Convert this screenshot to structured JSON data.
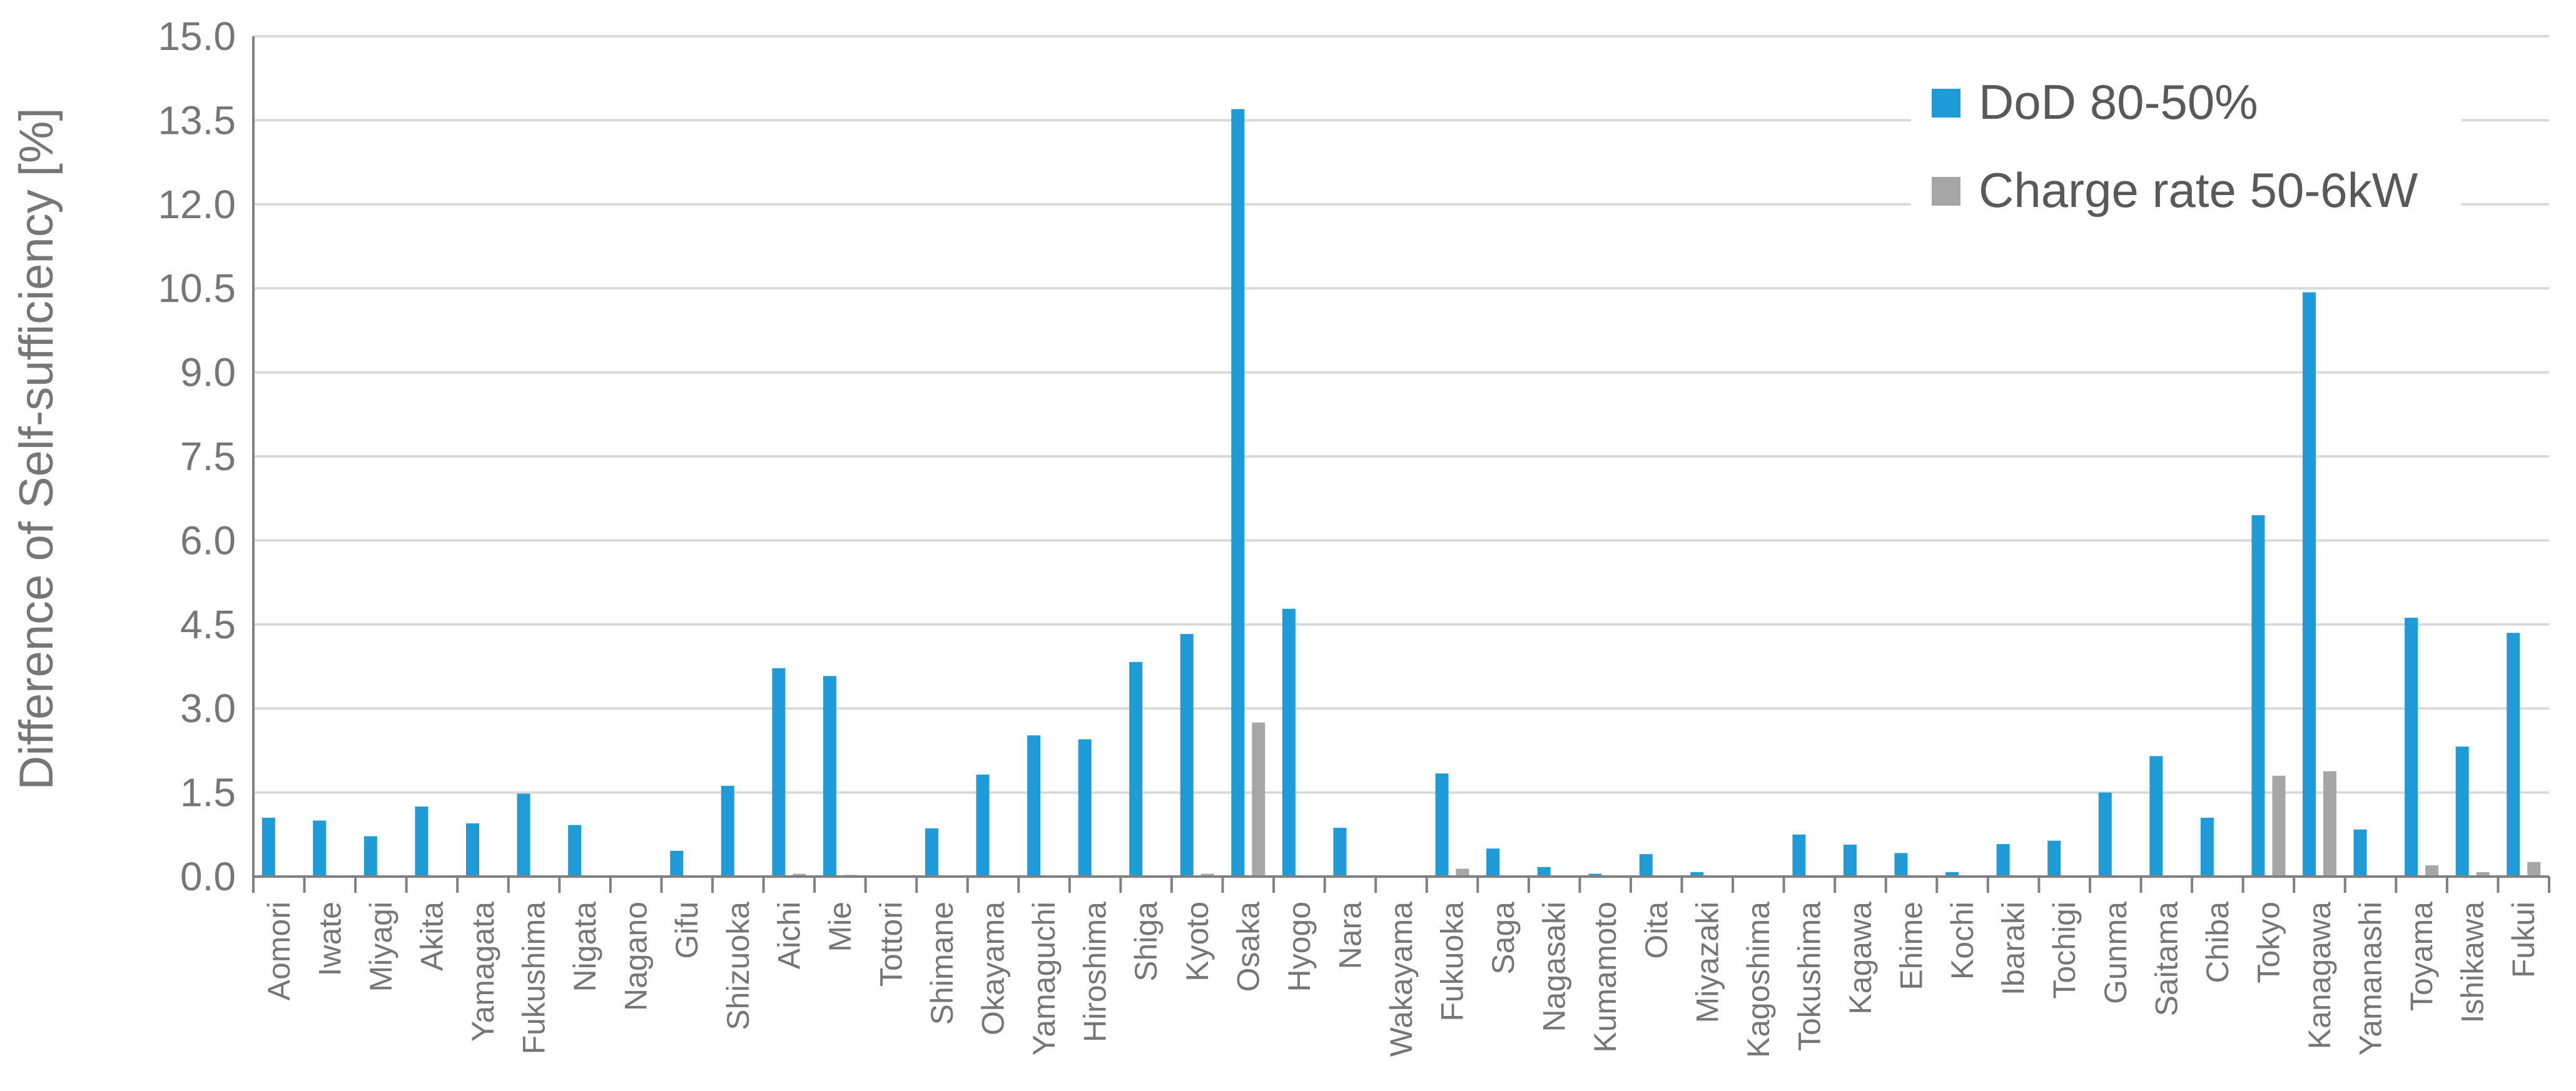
{
  "chart_data": {
    "type": "bar",
    "title": "",
    "xlabel": "",
    "ylabel": "Difference of Self-sufficiency [%]",
    "ylim": [
      0,
      15
    ],
    "yticks": [
      "0.0",
      "1.5",
      "3.0",
      "4.5",
      "6.0",
      "7.5",
      "9.0",
      "10.5",
      "12.0",
      "13.5",
      "15.0"
    ],
    "grid": true,
    "legend_position": "top-right",
    "categories": [
      "Aomori",
      "Iwate",
      "Miyagi",
      "Akita",
      "Yamagata",
      "Fukushima",
      "Nigata",
      "Nagano",
      "Gifu",
      "Shizuoka",
      "Aichi",
      "Mie",
      "Tottori",
      "Shimane",
      "Okayama",
      "Yamaguchi",
      "Hiroshima",
      "Shiga",
      "Kyoto",
      "Osaka",
      "Hyogo",
      "Nara",
      "Wakayama",
      "Fukuoka",
      "Saga",
      "Nagasaki",
      "Kumamoto",
      "Oita",
      "Miyazaki",
      "Kagoshima",
      "Tokushima",
      "Kagawa",
      "Ehime",
      "Kochi",
      "Ibaraki",
      "Tochigi",
      "Gunma",
      "Saitama",
      "Chiba",
      "Tokyo",
      "Kanagawa",
      "Yamanashi",
      "Toyama",
      "Ishikawa",
      "Fukui"
    ],
    "series": [
      {
        "name": "DoD 80-50%",
        "color": "#1f9bd7",
        "values": [
          1.05,
          1.0,
          0.72,
          1.25,
          0.95,
          1.48,
          0.92,
          0.0,
          0.46,
          1.62,
          3.72,
          3.58,
          0.0,
          0.86,
          1.82,
          2.52,
          2.45,
          3.83,
          4.33,
          13.7,
          4.78,
          0.87,
          0.0,
          1.84,
          0.5,
          0.17,
          0.05,
          0.4,
          0.08,
          0.0,
          0.75,
          0.57,
          0.42,
          0.08,
          0.58,
          0.64,
          1.5,
          2.15,
          1.05,
          6.45,
          10.43,
          0.84,
          4.62,
          2.32,
          4.35
        ]
      },
      {
        "name": "Charge rate 50-6kW",
        "color": "#a6a6a6",
        "values": [
          0.0,
          0.0,
          0.0,
          0.0,
          0.0,
          0.0,
          0.0,
          0.0,
          0.0,
          0.02,
          0.05,
          0.03,
          0.0,
          0.0,
          0.0,
          0.0,
          0.0,
          0.0,
          0.05,
          2.75,
          0.0,
          0.0,
          0.0,
          0.14,
          0.0,
          0.0,
          0.0,
          0.0,
          0.0,
          0.0,
          0.0,
          0.0,
          0.0,
          0.0,
          0.0,
          0.0,
          0.0,
          0.0,
          0.0,
          1.8,
          1.88,
          0.0,
          0.2,
          0.08,
          0.26
        ]
      }
    ]
  }
}
